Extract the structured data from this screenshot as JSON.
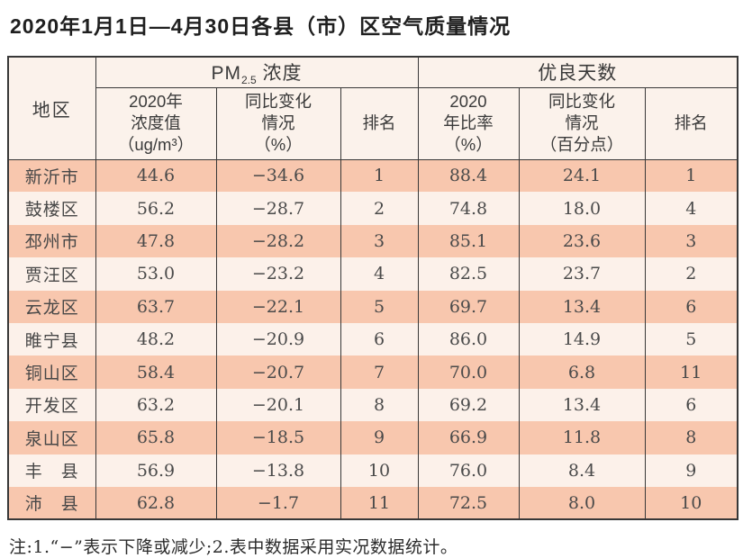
{
  "title": "2020年1月1日—4月30日各县（市）区空气质量情况",
  "table": {
    "header": {
      "region": "地区",
      "pm25_group": {
        "prefix": "PM",
        "sub": "2.5",
        "suffix": " 浓度"
      },
      "good_days_group": "优良天数",
      "pm25_value": "2020年\n浓度值\n（ug/m³）",
      "pm25_change": "同比变化\n情况\n（%）",
      "pm25_rank": "排名",
      "good_ratio": "2020\n年比率\n（%）",
      "good_change": "同比变化\n情况\n（百分点）",
      "good_rank": "排名"
    },
    "rows": [
      {
        "region": "新沂市",
        "pm25_value": "44.6",
        "pm25_change": "−34.6",
        "pm25_rank": "1",
        "good_ratio": "88.4",
        "good_change": "24.1",
        "good_rank": "1"
      },
      {
        "region": "鼓楼区",
        "pm25_value": "56.2",
        "pm25_change": "−28.7",
        "pm25_rank": "2",
        "good_ratio": "74.8",
        "good_change": "18.0",
        "good_rank": "4"
      },
      {
        "region": "邳州市",
        "pm25_value": "47.8",
        "pm25_change": "−28.2",
        "pm25_rank": "3",
        "good_ratio": "85.1",
        "good_change": "23.6",
        "good_rank": "3"
      },
      {
        "region": "贾汪区",
        "pm25_value": "53.0",
        "pm25_change": "−23.2",
        "pm25_rank": "4",
        "good_ratio": "82.5",
        "good_change": "23.7",
        "good_rank": "2"
      },
      {
        "region": "云龙区",
        "pm25_value": "63.7",
        "pm25_change": "−22.1",
        "pm25_rank": "5",
        "good_ratio": "69.7",
        "good_change": "13.4",
        "good_rank": "6"
      },
      {
        "region": "睢宁县",
        "pm25_value": "48.2",
        "pm25_change": "−20.9",
        "pm25_rank": "6",
        "good_ratio": "86.0",
        "good_change": "14.9",
        "good_rank": "5"
      },
      {
        "region": "铜山区",
        "pm25_value": "58.4",
        "pm25_change": "−20.7",
        "pm25_rank": "7",
        "good_ratio": "70.0",
        "good_change": "6.8",
        "good_rank": "11"
      },
      {
        "region": "开发区",
        "pm25_value": "63.2",
        "pm25_change": "−20.1",
        "pm25_rank": "8",
        "good_ratio": "69.2",
        "good_change": "13.4",
        "good_rank": "6"
      },
      {
        "region": "泉山区",
        "pm25_value": "65.8",
        "pm25_change": "−18.5",
        "pm25_rank": "9",
        "good_ratio": "66.9",
        "good_change": "11.8",
        "good_rank": "8"
      },
      {
        "region": "丰　县",
        "pm25_value": "56.9",
        "pm25_change": "−13.8",
        "pm25_rank": "10",
        "good_ratio": "76.0",
        "good_change": "8.4",
        "good_rank": "9"
      },
      {
        "region": "沛　县",
        "pm25_value": "62.8",
        "pm25_change": "−1.7",
        "pm25_rank": "11",
        "good_ratio": "72.5",
        "good_change": "8.0",
        "good_rank": "10"
      }
    ]
  },
  "note": "注:1.“−”表示下降或减少;2.表中数据采用实况数据统计。",
  "colors": {
    "row_odd": "#f8c7ae",
    "row_even": "#fcf1ea",
    "header_bg": "#fbf2eb",
    "border": "#383838"
  }
}
